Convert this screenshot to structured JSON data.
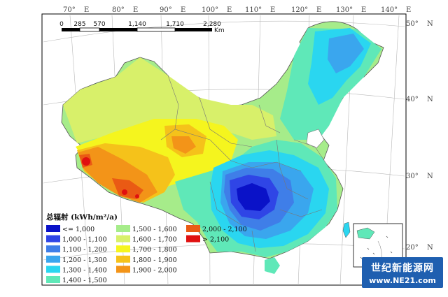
{
  "lon_labels": [
    {
      "deg": "70°",
      "dir": "E"
    },
    {
      "deg": "80°",
      "dir": "E"
    },
    {
      "deg": "90°",
      "dir": "E"
    },
    {
      "deg": "100°",
      "dir": "E"
    },
    {
      "deg": "110°",
      "dir": "E"
    },
    {
      "deg": "120°",
      "dir": "E"
    },
    {
      "deg": "130°",
      "dir": "E"
    },
    {
      "deg": "140°",
      "dir": "E"
    }
  ],
  "lat_labels": [
    {
      "deg": "50°",
      "dir": "N"
    },
    {
      "deg": "40°",
      "dir": "N"
    },
    {
      "deg": "30°",
      "dir": "N"
    },
    {
      "deg": "20°",
      "dir": "N"
    }
  ],
  "scale_bar": {
    "ticks": [
      "0",
      "285",
      "570",
      "1,140",
      "1,710",
      "2,280"
    ],
    "unit": "Km"
  },
  "legend": {
    "title": "总辐射 (kWh/m²/a)",
    "items": [
      {
        "label": "<= 1,000",
        "color": "#0a12c8"
      },
      {
        "label": "1,000 - 1,100",
        "color": "#2f45e6"
      },
      {
        "label": "1,100 - 1,200",
        "color": "#3f7ee8"
      },
      {
        "label": "1,200 - 1,300",
        "color": "#3aa6ee"
      },
      {
        "label": "1,300 - 1,400",
        "color": "#2ad6f0"
      },
      {
        "label": "1,400 - 1,500",
        "color": "#5fe8b8"
      },
      {
        "label": "1,500 - 1,600",
        "color": "#a6ec8a"
      },
      {
        "label": "1,600 - 1,700",
        "color": "#d8f06a"
      },
      {
        "label": "1,700 - 1,800",
        "color": "#f5f51e"
      },
      {
        "label": "1,800 - 1,900",
        "color": "#f5c21a"
      },
      {
        "label": "1,900 - 2,000",
        "color": "#f39418"
      },
      {
        "label": "2,000 - 2,100",
        "color": "#ea5a14"
      },
      {
        "label": "> 2,100",
        "color": "#e01010"
      }
    ]
  },
  "watermark": {
    "chinese": "世纪新能源网",
    "url": "www.NE21.com"
  }
}
